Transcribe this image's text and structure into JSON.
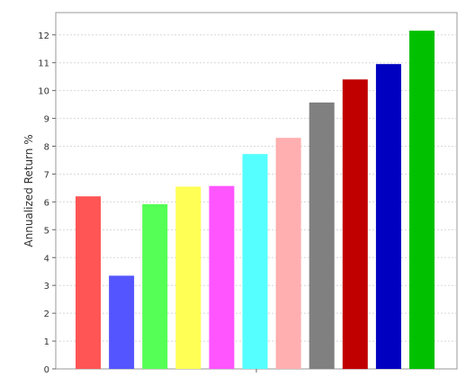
{
  "chart_data": {
    "type": "bar",
    "ylabel": "Annualized Return %",
    "xlabel": "",
    "ylim": [
      0,
      12.8
    ],
    "y_ticks": [
      0,
      1,
      2,
      3,
      4,
      5,
      6,
      7,
      8,
      9,
      10,
      11,
      12
    ],
    "grid": "horizontal-dashed",
    "values": [
      6.2,
      3.35,
      5.92,
      6.55,
      6.57,
      7.72,
      8.3,
      9.57,
      10.4,
      10.95,
      12.15
    ],
    "colors": [
      "#ff5555",
      "#5555ff",
      "#55ff55",
      "#ffff55",
      "#ff55ff",
      "#55ffff",
      "#ffafaf",
      "#808080",
      "#c00000",
      "#0000c0",
      "#00c000"
    ]
  }
}
